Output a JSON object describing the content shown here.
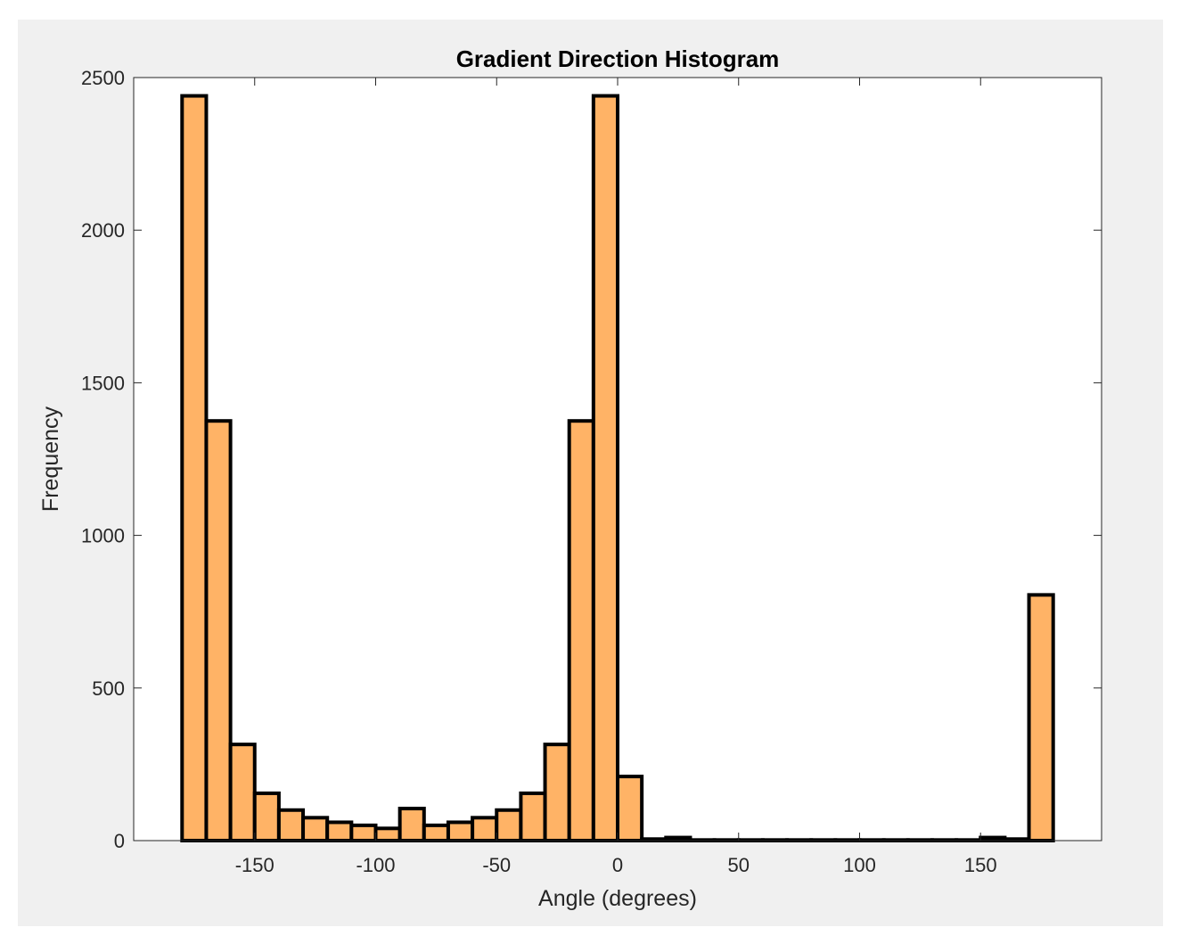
{
  "chart_data": {
    "type": "bar",
    "title": "Gradient Direction Histogram",
    "xlabel": "Angle (degrees)",
    "ylabel": "Frequency",
    "xlim": [
      -200,
      200
    ],
    "ylim": [
      0,
      2500
    ],
    "bin_edges": [
      -180,
      -170,
      -160,
      -150,
      -140,
      -130,
      -120,
      -110,
      -100,
      -90,
      -80,
      -70,
      -60,
      -50,
      -40,
      -30,
      -20,
      -10,
      0,
      10,
      20,
      30,
      40,
      50,
      60,
      70,
      80,
      90,
      100,
      110,
      120,
      130,
      140,
      150,
      160,
      170,
      180
    ],
    "values": [
      2440,
      1375,
      315,
      155,
      100,
      75,
      60,
      50,
      40,
      105,
      50,
      60,
      75,
      100,
      155,
      315,
      1375,
      2440,
      210,
      5,
      10,
      2,
      2,
      2,
      2,
      2,
      2,
      2,
      2,
      2,
      2,
      2,
      2,
      10,
      5,
      805
    ],
    "x_ticks": [
      -150,
      -100,
      -50,
      0,
      50,
      100,
      150
    ],
    "x_tick_labels": [
      "-150",
      "-100",
      "-50",
      "0",
      "50",
      "100",
      "150"
    ],
    "y_ticks": [
      0,
      500,
      1000,
      1500,
      2000,
      2500
    ],
    "y_tick_labels": [
      "0",
      "500",
      "1000",
      "1500",
      "2000",
      "2500"
    ],
    "grid": false,
    "colors": {
      "bar_fill": "#FFB366",
      "bar_edge": "#000000",
      "axes_background": "#ffffff",
      "figure_background": "#f0f0f0"
    }
  }
}
